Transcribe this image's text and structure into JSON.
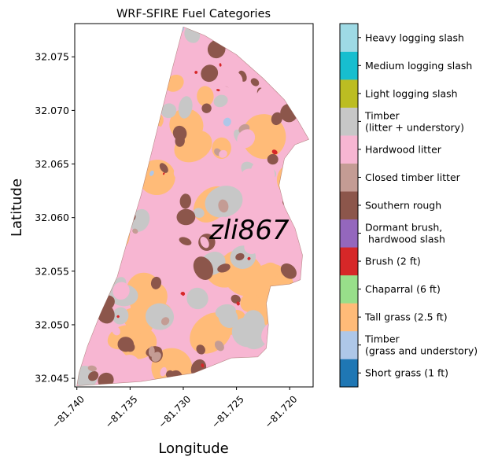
{
  "title": "WRF-SFIRE Fuel Categories",
  "xlabel": "Longitude",
  "ylabel": "Latitude",
  "watermark": "zli867",
  "chart_data": {
    "type": "heatmap",
    "title": "WRF-SFIRE Fuel Categories",
    "xlabel": "Longitude",
    "ylabel": "Latitude",
    "xlim": [
      -81.7402,
      -81.7178
    ],
    "ylim": [
      32.0442,
      32.0781
    ],
    "xticks": [
      -81.74,
      -81.735,
      -81.73,
      -81.725,
      -81.72
    ],
    "xtick_labels": [
      "−81.740",
      "−81.735",
      "−81.730",
      "−81.725",
      "−81.720"
    ],
    "yticks": [
      32.045,
      32.05,
      32.055,
      32.06,
      32.065,
      32.07,
      32.075
    ],
    "ytick_labels": [
      "32.045",
      "32.050",
      "32.055",
      "32.060",
      "32.065",
      "32.070",
      "32.075"
    ],
    "grid": false,
    "colorbar": {
      "position": "right",
      "categories": [
        {
          "label": "Short grass (1 ft)",
          "color": "#1f77b4"
        },
        {
          "label": "Timber\n(grass and understory)",
          "color": "#aec7e8"
        },
        {
          "label": "Tall grass (2.5 ft)",
          "color": "#ffbb78"
        },
        {
          "label": "Chaparral (6 ft)",
          "color": "#98df8a"
        },
        {
          "label": "Brush (2 ft)",
          "color": "#d62728"
        },
        {
          "label": "Dormant brush,\n hardwood slash",
          "color": "#9467bd"
        },
        {
          "label": "Southern rough",
          "color": "#8c564b"
        },
        {
          "label": "Closed timber litter",
          "color": "#c49c94"
        },
        {
          "label": "Hardwood litter",
          "color": "#f7b6d2"
        },
        {
          "label": "Timber\n(litter + understory)",
          "color": "#c7c7c7"
        },
        {
          "label": "Light logging slash",
          "color": "#bcbd22"
        },
        {
          "label": "Medium logging slash",
          "color": "#17becf"
        },
        {
          "label": "Heavy logging slash",
          "color": "#9edae5"
        }
      ]
    },
    "region_outline_lonlat": [
      [
        -81.73,
        32.0778
      ],
      [
        -81.728,
        32.077
      ],
      [
        -81.725,
        32.0752
      ],
      [
        -81.7225,
        32.073
      ],
      [
        -81.7205,
        32.071
      ],
      [
        -81.7192,
        32.069
      ],
      [
        -81.7182,
        32.0673
      ],
      [
        -81.7195,
        32.0668
      ],
      [
        -81.7205,
        32.0655
      ],
      [
        -81.721,
        32.063
      ],
      [
        -81.7205,
        32.061
      ],
      [
        -81.7195,
        32.059
      ],
      [
        -81.7188,
        32.0565
      ],
      [
        -81.719,
        32.0542
      ],
      [
        -81.72,
        32.0538
      ],
      [
        -81.7218,
        32.0536
      ],
      [
        -81.7222,
        32.052
      ],
      [
        -81.722,
        32.05
      ],
      [
        -81.7222,
        32.0478
      ],
      [
        -81.723,
        32.047
      ],
      [
        -81.7255,
        32.0469
      ],
      [
        -81.729,
        32.0455
      ],
      [
        -81.734,
        32.0447
      ],
      [
        -81.74,
        32.0443
      ],
      [
        -81.7398,
        32.0455
      ],
      [
        -81.739,
        32.048
      ],
      [
        -81.7378,
        32.051
      ],
      [
        -81.7362,
        32.0545
      ],
      [
        -81.7352,
        32.058
      ],
      [
        -81.734,
        32.062
      ],
      [
        -81.733,
        32.066
      ],
      [
        -81.732,
        32.07
      ],
      [
        -81.731,
        32.074
      ]
    ],
    "dominant_category": "Hardwood litter"
  }
}
